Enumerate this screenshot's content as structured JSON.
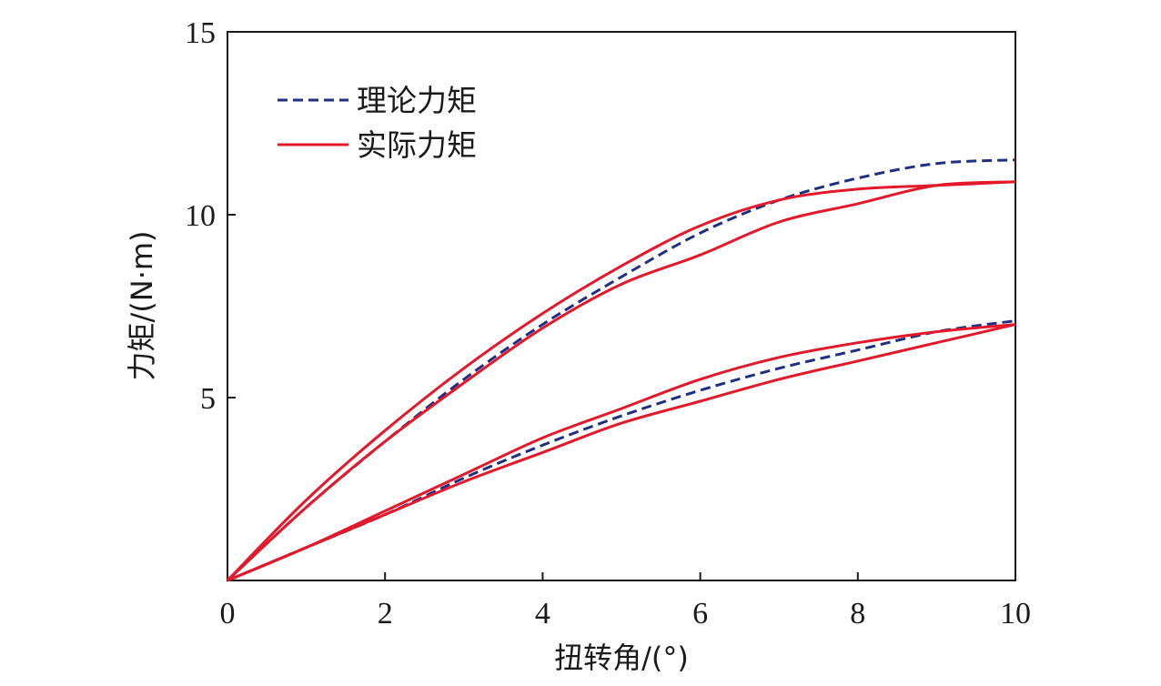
{
  "chart_data": {
    "type": "line",
    "xlabel": "扭转角/(°)",
    "ylabel": "力矩/(N·m)",
    "xlim": [
      0,
      10
    ],
    "ylim": [
      0,
      15
    ],
    "x_ticks": [
      0,
      2,
      4,
      6,
      8,
      10
    ],
    "x_tick_labels": [
      "0",
      "2",
      "4",
      "6",
      "8",
      "10"
    ],
    "y_ticks": [
      5,
      10,
      15
    ],
    "y_tick_labels": [
      "5",
      "10",
      "15"
    ],
    "grid": false,
    "legend_position": "top-left",
    "legend": [
      {
        "label": "理论力矩",
        "style": "dashed",
        "color": "#1f2f82"
      },
      {
        "label": "实际力矩",
        "style": "solid",
        "color": "#e3192b"
      }
    ],
    "series": [
      {
        "name": "理论力矩",
        "style": "dashed",
        "color": "#1f2f82",
        "loops": [
          {
            "upper": [
              [
                0,
                0
              ],
              [
                1,
                2.0
              ],
              [
                2,
                3.8
              ],
              [
                3,
                5.5
              ],
              [
                4,
                7.0
              ],
              [
                5,
                8.3
              ],
              [
                6,
                9.5
              ],
              [
                7,
                10.4
              ],
              [
                8,
                11.0
              ],
              [
                9,
                11.4
              ],
              [
                10,
                11.5
              ]
            ],
            "lower": [
              [
                0,
                0
              ],
              [
                1,
                0.9
              ],
              [
                2,
                1.8
              ],
              [
                3,
                2.8
              ],
              [
                4,
                3.7
              ],
              [
                5,
                4.5
              ],
              [
                6,
                5.2
              ],
              [
                7,
                5.8
              ],
              [
                8,
                6.3
              ],
              [
                9,
                6.8
              ],
              [
                10,
                7.1
              ]
            ]
          }
        ]
      },
      {
        "name": "实际力矩",
        "style": "solid",
        "color": "#e3192b",
        "loops": [
          {
            "upper": [
              [
                0,
                0
              ],
              [
                1,
                2.2
              ],
              [
                2,
                4.1
              ],
              [
                3,
                5.8
              ],
              [
                4,
                7.3
              ],
              [
                5,
                8.6
              ],
              [
                6,
                9.7
              ],
              [
                7,
                10.4
              ],
              [
                8,
                10.7
              ],
              [
                9,
                10.8
              ],
              [
                10,
                10.9
              ]
            ],
            "lower": [
              [
                0,
                0
              ],
              [
                1,
                2.0
              ],
              [
                2,
                3.8
              ],
              [
                3,
                5.4
              ],
              [
                4,
                6.9
              ],
              [
                5,
                8.1
              ],
              [
                6,
                8.9
              ],
              [
                7,
                9.8
              ],
              [
                8,
                10.3
              ],
              [
                9,
                10.8
              ],
              [
                10,
                10.9
              ]
            ]
          },
          {
            "upper": [
              [
                0,
                0
              ],
              [
                1,
                0.9
              ],
              [
                2,
                1.9
              ],
              [
                3,
                2.9
              ],
              [
                4,
                3.9
              ],
              [
                5,
                4.7
              ],
              [
                6,
                5.5
              ],
              [
                7,
                6.1
              ],
              [
                8,
                6.5
              ],
              [
                9,
                6.8
              ],
              [
                10,
                7.0
              ]
            ],
            "lower": [
              [
                0,
                0
              ],
              [
                1,
                0.9
              ],
              [
                2,
                1.8
              ],
              [
                3,
                2.7
              ],
              [
                4,
                3.5
              ],
              [
                5,
                4.3
              ],
              [
                6,
                4.9
              ],
              [
                7,
                5.5
              ],
              [
                8,
                6.0
              ],
              [
                9,
                6.5
              ],
              [
                10,
                7.0
              ]
            ]
          }
        ]
      }
    ]
  }
}
